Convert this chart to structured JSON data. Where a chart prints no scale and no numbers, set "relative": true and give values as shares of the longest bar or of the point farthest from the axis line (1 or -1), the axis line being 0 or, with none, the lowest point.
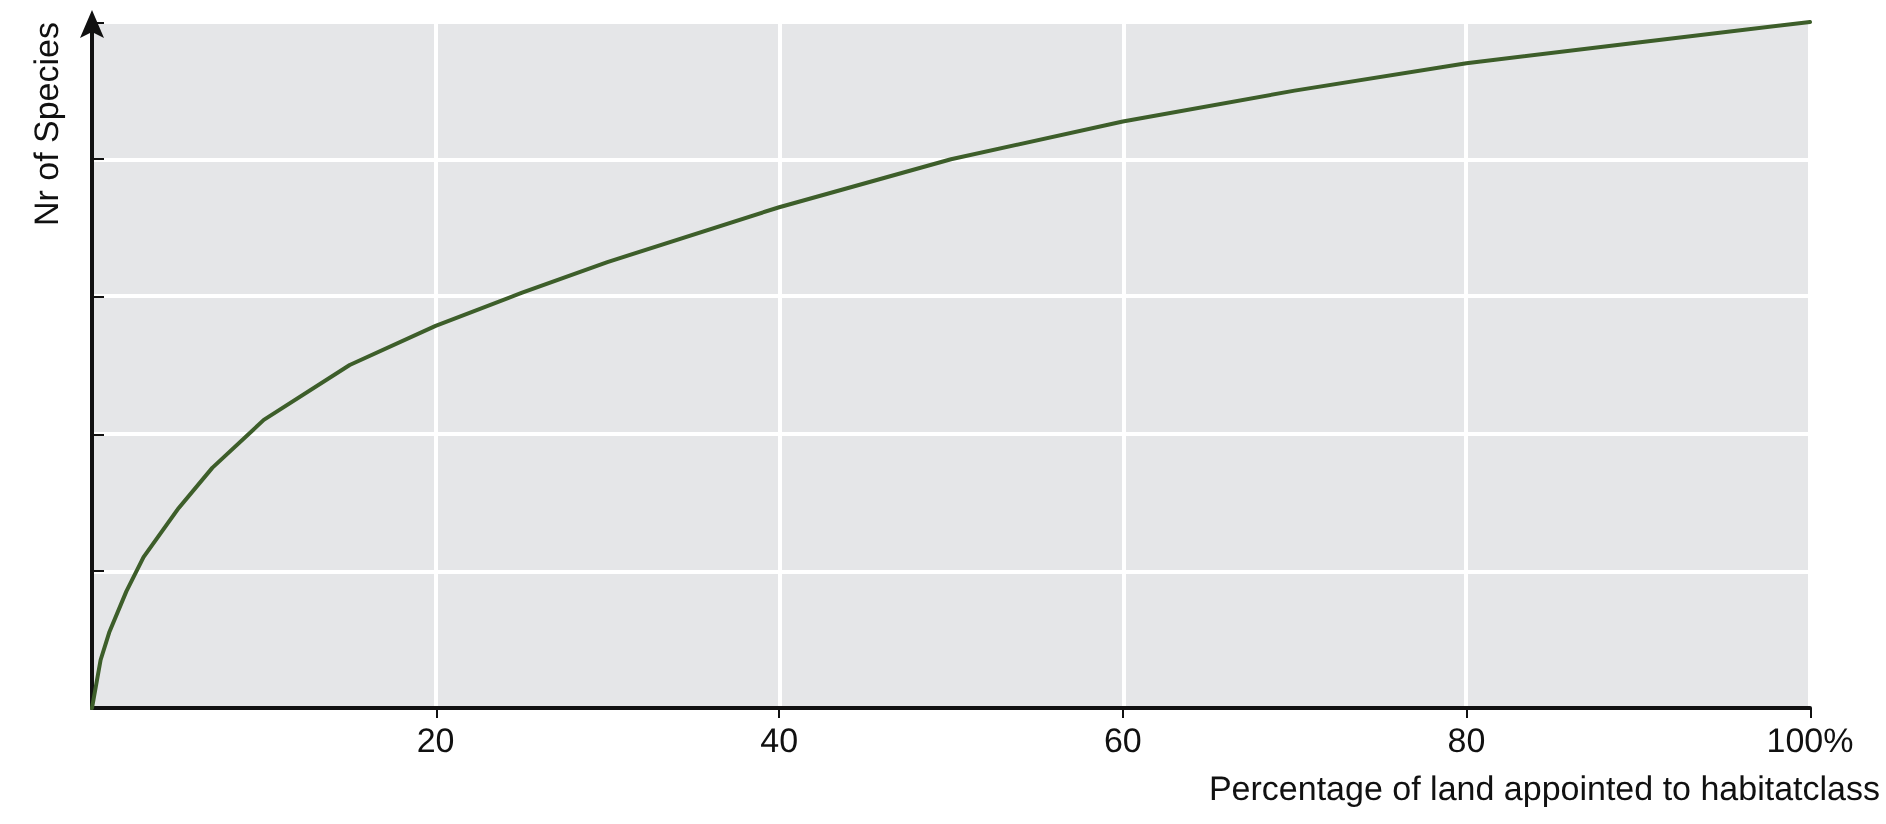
{
  "chart_data": {
    "type": "line",
    "relative": true,
    "xlabel": "Percentage of land appointed to habitatclass",
    "ylabel": "Nr of Species",
    "xlim": [
      0,
      100
    ],
    "xticks": [
      20,
      40,
      60,
      80,
      {
        "value": 100,
        "label": "100%"
      }
    ],
    "series": [
      {
        "color": "#3d5e2a",
        "x": [
          0,
          0.5,
          1,
          2,
          3,
          5,
          7,
          10,
          15,
          20,
          25,
          30,
          40,
          50,
          60,
          70,
          80,
          90,
          100
        ],
        "values": [
          0,
          0.07,
          0.11,
          0.17,
          0.22,
          0.29,
          0.35,
          0.42,
          0.5,
          0.557,
          0.605,
          0.65,
          0.73,
          0.8,
          0.855,
          0.9,
          0.94,
          0.97,
          1
        ]
      }
    ],
    "grid": true,
    "tick_labels": "x",
    "marker": "none",
    "line_style": "solid"
  }
}
